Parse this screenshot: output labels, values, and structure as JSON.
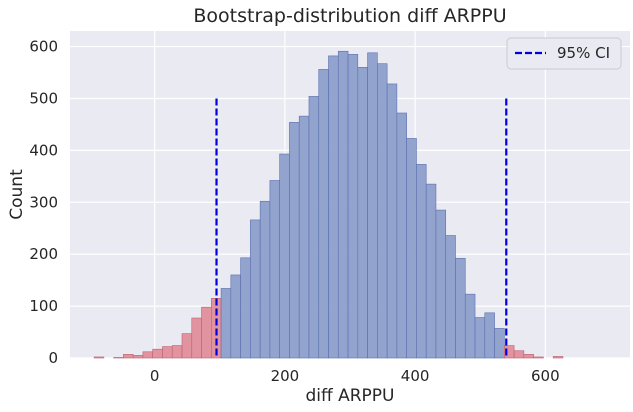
{
  "chart_data": {
    "type": "histogram",
    "title": "Bootstrap-distribution diff ARPPU",
    "xlabel": "diff ARPPU",
    "ylabel": "Count",
    "xlim": [
      -130,
      730
    ],
    "ylim": [
      0,
      630
    ],
    "xticks": [
      0,
      200,
      400,
      600
    ],
    "yticks": [
      0,
      100,
      200,
      300,
      400,
      500,
      600
    ],
    "bin_start": -93,
    "bin_width": 15,
    "counts": [
      2,
      0,
      1,
      7,
      5,
      12,
      17,
      22,
      24,
      47,
      77,
      98,
      115,
      134,
      160,
      193,
      266,
      302,
      342,
      393,
      454,
      466,
      504,
      556,
      582,
      591,
      585,
      560,
      588,
      567,
      528,
      472,
      423,
      373,
      335,
      285,
      236,
      192,
      123,
      78,
      87,
      57,
      24,
      14,
      7,
      2,
      0,
      3
    ],
    "ci": {
      "lower": 95,
      "upper": 540,
      "line_top": 500,
      "label": "95% CI"
    },
    "colors": {
      "inside": "#8da0cb",
      "inside_edge": "#5b6fb0",
      "outside": "#e08e9a",
      "outside_edge": "#c06070",
      "ci_line": "#0000dd",
      "grid": "#ffffff",
      "panel": "#eaeaf2"
    },
    "legend": {
      "position": "top-right",
      "entries": [
        "95% CI"
      ]
    }
  }
}
